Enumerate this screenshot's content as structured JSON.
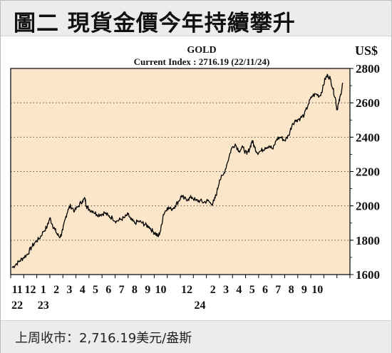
{
  "header": {
    "title": "圖二 現貨金價今年持續攀升"
  },
  "footer": {
    "note": "上周收市：2,716.19美元/盎斯"
  },
  "colors": {
    "plot_bg": "#fbe6c9",
    "line": "#000000",
    "grid": "#555555",
    "header_bg": "#ececec"
  },
  "chart_data": {
    "type": "line",
    "title": "GOLD",
    "subtitle": "Current Index : 2716.19 (22/11/24)",
    "ylabel": "US$",
    "xlabel": "",
    "ylim": [
      1600,
      2800
    ],
    "y_ticks": [
      1600,
      1800,
      2000,
      2200,
      2400,
      2600,
      2800
    ],
    "y_gridlines": [
      1800,
      2000,
      2200,
      2400,
      2600
    ],
    "grid": "horizontal dotted",
    "x_ticks": [
      {
        "label": "11",
        "x": 0.5
      },
      {
        "label": "12",
        "x": 1.5
      },
      {
        "label": "1",
        "x": 2.5
      },
      {
        "label": "2",
        "x": 3.5
      },
      {
        "label": "3",
        "x": 4.5
      },
      {
        "label": "4",
        "x": 5.5
      },
      {
        "label": "5",
        "x": 6.5
      },
      {
        "label": "6",
        "x": 7.5
      },
      {
        "label": "7",
        "x": 8.5
      },
      {
        "label": "8",
        "x": 9.5
      },
      {
        "label": "9",
        "x": 10.5
      },
      {
        "label": "10",
        "x": 11.5
      },
      {
        "label": "12",
        "x": 13.5
      },
      {
        "label": "2",
        "x": 15.5
      },
      {
        "label": "3",
        "x": 16.5
      },
      {
        "label": "4",
        "x": 17.5
      },
      {
        "label": "5",
        "x": 18.5
      },
      {
        "label": "6",
        "x": 19.5
      },
      {
        "label": "7",
        "x": 20.5
      },
      {
        "label": "8",
        "x": 21.5
      },
      {
        "label": "9",
        "x": 22.5
      },
      {
        "label": "10",
        "x": 23.5
      }
    ],
    "year_labels": [
      {
        "label": "22",
        "x": 0.5
      },
      {
        "label": "23",
        "x": 2.5
      },
      {
        "label": "24",
        "x": 14.5
      }
    ],
    "x_range": [
      0,
      26
    ],
    "series": [
      {
        "values": [
          [
            0.1,
            1640
          ],
          [
            0.4,
            1660
          ],
          [
            0.7,
            1680
          ],
          [
            1.0,
            1700
          ],
          [
            1.3,
            1720
          ],
          [
            1.6,
            1760
          ],
          [
            1.9,
            1790
          ],
          [
            2.2,
            1810
          ],
          [
            2.5,
            1850
          ],
          [
            2.8,
            1880
          ],
          [
            3.0,
            1930
          ],
          [
            3.2,
            1890
          ],
          [
            3.4,
            1860
          ],
          [
            3.6,
            1830
          ],
          [
            3.8,
            1820
          ],
          [
            4.0,
            1860
          ],
          [
            4.2,
            1930
          ],
          [
            4.4,
            1980
          ],
          [
            4.6,
            2000
          ],
          [
            4.9,
            1970
          ],
          [
            5.2,
            2000
          ],
          [
            5.5,
            2030
          ],
          [
            5.7,
            2040
          ],
          [
            5.8,
            2000
          ],
          [
            6.0,
            1980
          ],
          [
            6.3,
            1970
          ],
          [
            6.6,
            1950
          ],
          [
            6.9,
            1950
          ],
          [
            7.2,
            1960
          ],
          [
            7.5,
            1940
          ],
          [
            7.8,
            1930
          ],
          [
            8.1,
            1910
          ],
          [
            8.4,
            1920
          ],
          [
            8.7,
            1930
          ],
          [
            9.0,
            1950
          ],
          [
            9.2,
            1920
          ],
          [
            9.5,
            1900
          ],
          [
            9.8,
            1910
          ],
          [
            10.1,
            1900
          ],
          [
            10.3,
            1890
          ],
          [
            10.6,
            1880
          ],
          [
            10.9,
            1850
          ],
          [
            11.1,
            1840
          ],
          [
            11.3,
            1820
          ],
          [
            11.5,
            1860
          ],
          [
            11.7,
            1950
          ],
          [
            12.0,
            1990
          ],
          [
            12.3,
            1980
          ],
          [
            12.6,
            2000
          ],
          [
            12.9,
            2030
          ],
          [
            13.1,
            2060
          ],
          [
            13.3,
            2040
          ],
          [
            13.6,
            2040
          ],
          [
            13.9,
            2050
          ],
          [
            14.2,
            2030
          ],
          [
            14.5,
            2030
          ],
          [
            14.8,
            2020
          ],
          [
            15.1,
            2030
          ],
          [
            15.4,
            2010
          ],
          [
            15.6,
            2030
          ],
          [
            15.8,
            2080
          ],
          [
            16.0,
            2150
          ],
          [
            16.3,
            2180
          ],
          [
            16.6,
            2250
          ],
          [
            16.9,
            2330
          ],
          [
            17.2,
            2360
          ],
          [
            17.5,
            2320
          ],
          [
            17.8,
            2340
          ],
          [
            18.1,
            2300
          ],
          [
            18.3,
            2330
          ],
          [
            18.5,
            2380
          ],
          [
            18.7,
            2340
          ],
          [
            18.9,
            2310
          ],
          [
            19.2,
            2320
          ],
          [
            19.5,
            2340
          ],
          [
            19.8,
            2350
          ],
          [
            20.1,
            2330
          ],
          [
            20.4,
            2390
          ],
          [
            20.7,
            2400
          ],
          [
            21.0,
            2380
          ],
          [
            21.3,
            2410
          ],
          [
            21.6,
            2480
          ],
          [
            21.9,
            2500
          ],
          [
            22.2,
            2510
          ],
          [
            22.5,
            2530
          ],
          [
            22.8,
            2590
          ],
          [
            23.1,
            2640
          ],
          [
            23.4,
            2650
          ],
          [
            23.7,
            2640
          ],
          [
            23.9,
            2680
          ],
          [
            24.1,
            2740
          ],
          [
            24.3,
            2760
          ],
          [
            24.5,
            2740
          ],
          [
            24.7,
            2680
          ],
          [
            24.9,
            2620
          ],
          [
            25.0,
            2560
          ],
          [
            25.15,
            2600
          ],
          [
            25.3,
            2650
          ],
          [
            25.45,
            2716
          ]
        ]
      }
    ]
  }
}
